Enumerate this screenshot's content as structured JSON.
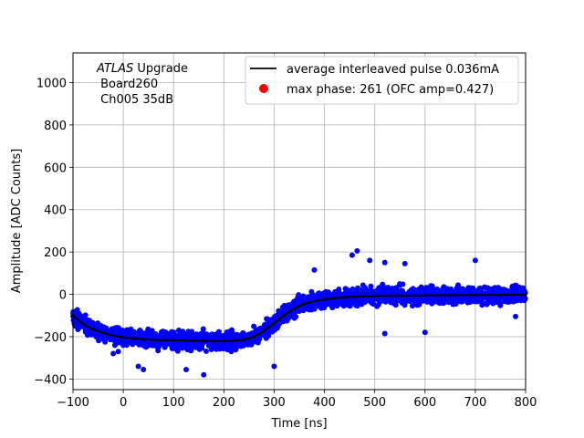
{
  "chart_data": {
    "type": "scatter",
    "xlabel": "Time [ns]",
    "ylabel": "Amplitude [ADC Counts]",
    "xlim": [
      -100,
      800
    ],
    "ylim": [
      -450,
      1140
    ],
    "xticks": [
      -100,
      0,
      100,
      200,
      300,
      400,
      500,
      600,
      700,
      800
    ],
    "yticks": [
      -400,
      -200,
      0,
      200,
      400,
      600,
      800,
      1000
    ],
    "grid": true,
    "legend_position": "top-right",
    "annotation": {
      "line1_italic": "ATLAS",
      "line1_rest": " Upgrade",
      "line2": " Board260",
      "line3": " Ch005 35dB"
    },
    "series": [
      {
        "name": "average interleaved pulse 0.036mA",
        "kind": "line",
        "color": "#000000",
        "x": [
          -100,
          -80,
          -60,
          -40,
          -20,
          0,
          20,
          40,
          60,
          80,
          100,
          120,
          140,
          160,
          180,
          200,
          220,
          240,
          250,
          260,
          270,
          280,
          290,
          300,
          310,
          320,
          330,
          340,
          350,
          360,
          380,
          400,
          420,
          440,
          460,
          480,
          500,
          550,
          600,
          650,
          700,
          750,
          800
        ],
        "y": [
          -100,
          -140,
          -165,
          -182,
          -195,
          -203,
          -208,
          -212,
          -215,
          -216,
          -217,
          -218,
          -219,
          -220,
          -221,
          -221,
          -219,
          -214,
          -208,
          -199,
          -187,
          -172,
          -155,
          -136,
          -117,
          -99,
          -82,
          -67,
          -55,
          -45,
          -32,
          -24,
          -18,
          -14,
          -11,
          -9,
          -8,
          -6,
          -5,
          -4,
          -3,
          -3,
          -2
        ]
      },
      {
        "name": "",
        "kind": "scatter-band",
        "color": "#0000ff",
        "band_halfwidth": 70,
        "outliers": [
          [
            465,
            205
          ],
          [
            455,
            185
          ],
          [
            380,
            115
          ],
          [
            490,
            160
          ],
          [
            520,
            150
          ],
          [
            560,
            145
          ],
          [
            700,
            160
          ],
          [
            520,
            -185
          ],
          [
            600,
            -180
          ],
          [
            780,
            -105
          ],
          [
            30,
            -340
          ],
          [
            40,
            -355
          ],
          [
            160,
            -380
          ],
          [
            300,
            -340
          ],
          [
            -20,
            -280
          ],
          [
            -55,
            -160
          ],
          [
            -10,
            -270
          ],
          [
            125,
            -355
          ]
        ]
      },
      {
        "name": "max phase: 261 (OFC amp=0.427)",
        "kind": "point",
        "color": "#ff0000"
      }
    ]
  }
}
